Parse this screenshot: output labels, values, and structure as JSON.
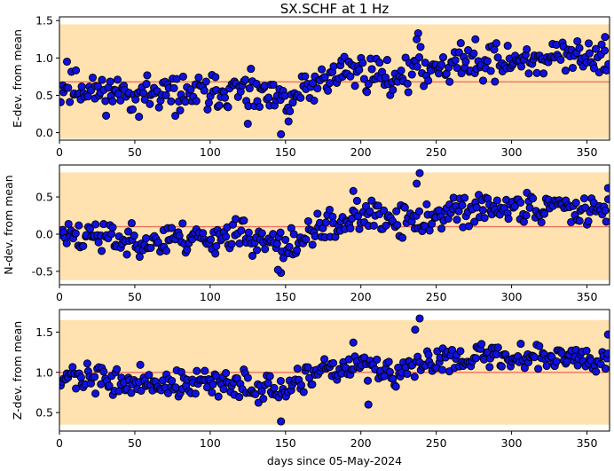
{
  "title": "SX.SCHF at 1 Hz",
  "xlabel": "days since 05-May-2024",
  "colors": {
    "band": "#ffe2b0",
    "mean_line": "#f07060",
    "point_fill": "#1010e0",
    "point_edge": "#000000"
  },
  "chart_data": [
    {
      "type": "scatter",
      "ylabel": "E-dev. from mean",
      "xlim": [
        0,
        365
      ],
      "ylim": [
        -0.1,
        1.55
      ],
      "xticks": [
        0,
        50,
        100,
        150,
        200,
        250,
        300,
        350
      ],
      "yticks": [
        0.0,
        0.5,
        1.0,
        1.5
      ],
      "band": [
        -0.08,
        1.45
      ],
      "mean": 0.68,
      "trend": [
        [
          0,
          0.6
        ],
        [
          60,
          0.5
        ],
        [
          120,
          0.55
        ],
        [
          150,
          0.4
        ],
        [
          170,
          0.65
        ],
        [
          190,
          0.85
        ],
        [
          220,
          0.75
        ],
        [
          260,
          0.95
        ],
        [
          300,
          0.95
        ],
        [
          365,
          1.05
        ]
      ],
      "noise": 0.17,
      "outliers": [
        [
          147,
          -0.02
        ],
        [
          238,
          1.33
        ],
        [
          237,
          1.25
        ],
        [
          276,
          1.25
        ],
        [
          362,
          1.28
        ],
        [
          5,
          0.95
        ],
        [
          152,
          0.15
        ],
        [
          125,
          0.12
        ]
      ],
      "n": 360,
      "seed": 11
    },
    {
      "type": "scatter",
      "ylabel": "N-dev. from mean",
      "xlim": [
        0,
        365
      ],
      "ylim": [
        -0.68,
        0.93
      ],
      "xticks": [
        0,
        50,
        100,
        150,
        200,
        250,
        300,
        350
      ],
      "yticks": [
        -0.5,
        0.0,
        0.5
      ],
      "band": [
        -0.62,
        0.83
      ],
      "mean": 0.1,
      "trend": [
        [
          0,
          0.0
        ],
        [
          60,
          -0.1
        ],
        [
          120,
          0.0
        ],
        [
          150,
          -0.2
        ],
        [
          175,
          0.1
        ],
        [
          200,
          0.25
        ],
        [
          230,
          0.15
        ],
        [
          260,
          0.3
        ],
        [
          300,
          0.35
        ],
        [
          365,
          0.4
        ]
      ],
      "noise": 0.15,
      "outliers": [
        [
          147,
          -0.52
        ],
        [
          145,
          -0.48
        ],
        [
          239,
          0.82
        ],
        [
          237,
          0.68
        ],
        [
          364,
          0.62
        ],
        [
          195,
          0.58
        ]
      ],
      "n": 360,
      "seed": 23
    },
    {
      "type": "scatter",
      "ylabel": "Z-dev. from mean",
      "xlim": [
        0,
        365
      ],
      "ylim": [
        0.27,
        1.78
      ],
      "xticks": [
        0,
        50,
        100,
        150,
        200,
        250,
        300,
        350
      ],
      "yticks": [
        0.5,
        1.0,
        1.5
      ],
      "band": [
        0.35,
        1.65
      ],
      "mean": 1.0,
      "trend": [
        [
          0,
          0.95
        ],
        [
          60,
          0.85
        ],
        [
          120,
          0.85
        ],
        [
          150,
          0.75
        ],
        [
          175,
          1.0
        ],
        [
          200,
          1.1
        ],
        [
          225,
          0.95
        ],
        [
          255,
          1.2
        ],
        [
          300,
          1.2
        ],
        [
          365,
          1.2
        ]
      ],
      "noise": 0.12,
      "outliers": [
        [
          147,
          0.39
        ],
        [
          239,
          1.67
        ],
        [
          236,
          1.53
        ],
        [
          195,
          1.37
        ],
        [
          205,
          0.6
        ],
        [
          364,
          1.47
        ]
      ],
      "n": 360,
      "seed": 37
    }
  ]
}
